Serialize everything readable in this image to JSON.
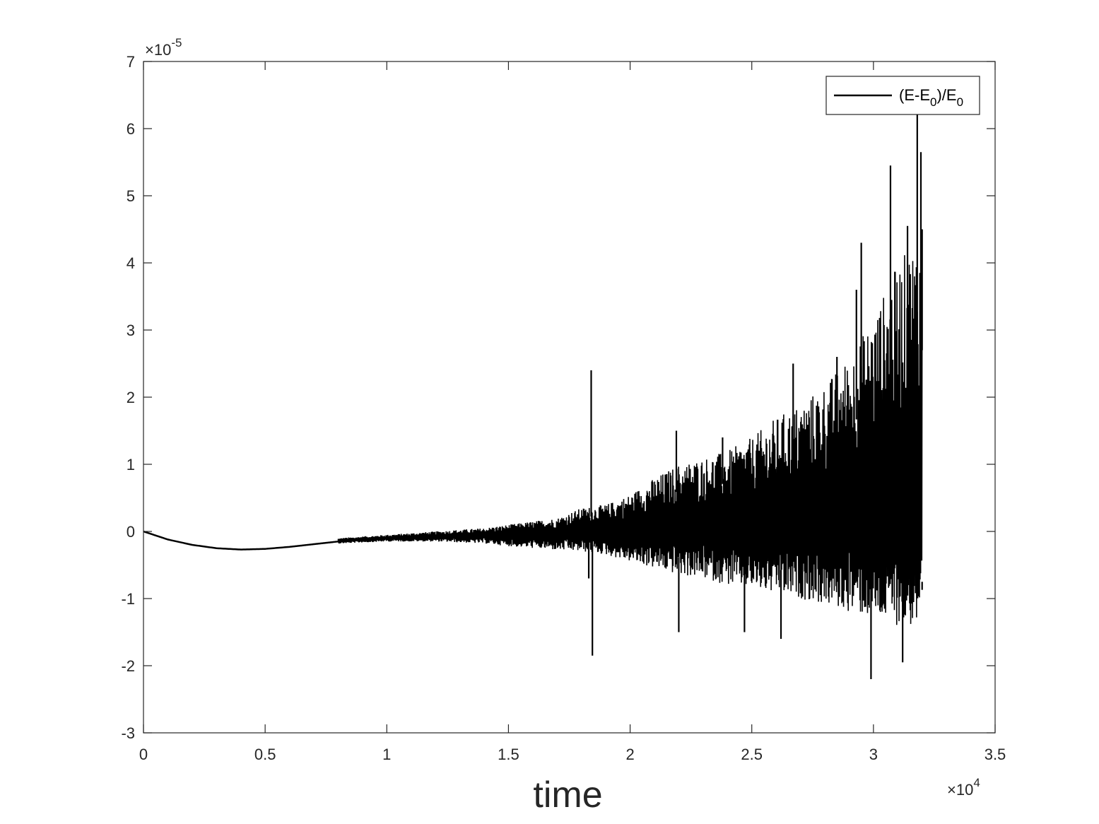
{
  "chart_data": {
    "type": "line",
    "title": "",
    "xlabel": "time",
    "ylabel": "",
    "x_exponent_label": {
      "prefix": "×10",
      "power": "4"
    },
    "y_exponent_label": {
      "prefix": "×10",
      "power": "-5"
    },
    "xlim": [
      0,
      3.5
    ],
    "ylim": [
      -3,
      7
    ],
    "x_scale_factor": 10000,
    "y_scale_factor": 1e-05,
    "x_ticks": [
      "0",
      "0.5",
      "1",
      "1.5",
      "2",
      "2.5",
      "3",
      "3.5"
    ],
    "y_ticks": [
      "-3",
      "-2",
      "-1",
      "0",
      "1",
      "2",
      "3",
      "4",
      "5",
      "6",
      "7"
    ],
    "grid": false,
    "legend_position": "top-right",
    "line_color": "#000000",
    "series": [
      {
        "name_parts": {
          "a": "(E-E",
          "sub1": "0",
          "b": ")/E",
          "sub2": "0"
        },
        "note": "values in axis units (x ×10^4, y ×10^-5); envelope of a rapidly oscillating signal",
        "baseline": {
          "x": [
            0,
            0.1,
            0.2,
            0.3,
            0.4,
            0.5,
            0.6,
            0.7,
            0.8,
            0.9,
            1.0,
            1.1,
            1.2,
            1.3,
            1.4,
            1.5,
            1.6,
            1.7,
            1.8
          ],
          "y": [
            0,
            -0.12,
            -0.2,
            -0.25,
            -0.27,
            -0.26,
            -0.23,
            -0.19,
            -0.15,
            -0.12,
            -0.1,
            -0.09,
            -0.08,
            -0.07,
            -0.06,
            -0.05,
            -0.04,
            -0.03,
            0.0
          ]
        },
        "envelope": {
          "x": [
            0.8,
            1.0,
            1.2,
            1.4,
            1.5,
            1.6,
            1.7,
            1.8,
            1.9,
            2.0,
            2.1,
            2.2,
            2.3,
            2.4,
            2.5,
            2.6,
            2.7,
            2.8,
            2.9,
            3.0,
            3.1,
            3.2
          ],
          "upper": [
            -0.1,
            -0.05,
            0.0,
            0.05,
            0.1,
            0.15,
            0.2,
            0.35,
            0.4,
            0.55,
            0.8,
            1.0,
            1.1,
            1.2,
            1.4,
            1.7,
            1.9,
            2.2,
            2.6,
            3.2,
            4.0,
            4.5
          ],
          "lower": [
            -0.18,
            -0.15,
            -0.15,
            -0.18,
            -0.22,
            -0.25,
            -0.28,
            -0.3,
            -0.35,
            -0.45,
            -0.55,
            -0.65,
            -0.7,
            -0.8,
            -0.85,
            -0.95,
            -1.0,
            -1.1,
            -1.2,
            -1.3,
            -1.4,
            -1.45
          ]
        },
        "spikes": [
          {
            "x": 1.84,
            "y": 2.4
          },
          {
            "x": 1.845,
            "y": -1.85
          },
          {
            "x": 1.83,
            "y": -0.7
          },
          {
            "x": 2.19,
            "y": 1.5
          },
          {
            "x": 2.2,
            "y": -1.5
          },
          {
            "x": 2.38,
            "y": 1.4
          },
          {
            "x": 2.47,
            "y": -1.5
          },
          {
            "x": 2.62,
            "y": -1.6
          },
          {
            "x": 2.67,
            "y": 2.5
          },
          {
            "x": 2.85,
            "y": 2.6
          },
          {
            "x": 2.93,
            "y": 3.6
          },
          {
            "x": 2.95,
            "y": 4.3
          },
          {
            "x": 2.99,
            "y": -2.2
          },
          {
            "x": 3.07,
            "y": 5.45
          },
          {
            "x": 3.12,
            "y": -1.95
          },
          {
            "x": 3.14,
            "y": 4.55
          },
          {
            "x": 3.18,
            "y": 6.3
          },
          {
            "x": 3.195,
            "y": 5.65
          },
          {
            "x": 3.2,
            "y": 4.5
          },
          {
            "x": 3.2,
            "y": -0.75
          }
        ]
      }
    ]
  }
}
